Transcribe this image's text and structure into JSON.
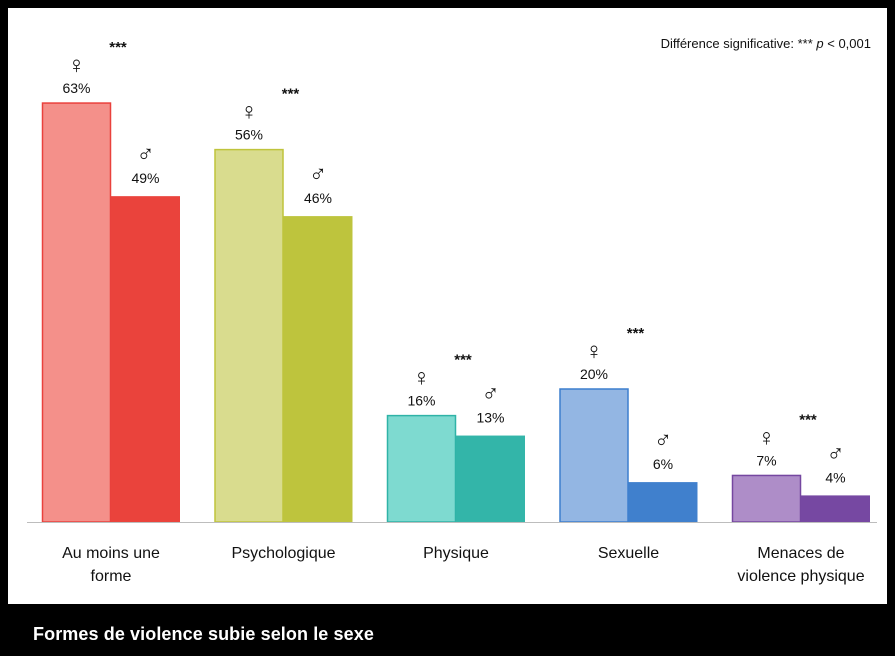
{
  "footer": {
    "title": "Formes de violence subie selon le sexe"
  },
  "chart_data": {
    "type": "bar",
    "annotation": {
      "prefix": "Différence significative: *** ",
      "p": "p",
      "suffix": " < 0,001"
    },
    "symbols": {
      "female": "♀",
      "male": "♂"
    },
    "significance_marker": "***",
    "value_format": "%",
    "ylim": [
      0,
      70
    ],
    "grid": false,
    "categories": [
      {
        "label_lines": [
          "Au moins une",
          "forme"
        ],
        "female": 63,
        "male": 49,
        "significant": true,
        "female_color": "#F4908A",
        "female_stroke": "#E9413C",
        "male_color": "#EA433C"
      },
      {
        "label_lines": [
          "Psychologique"
        ],
        "female": 56,
        "male": 46,
        "significant": true,
        "female_color": "#D9DC8E",
        "female_stroke": "#BFC43C",
        "male_color": "#BEC43D"
      },
      {
        "label_lines": [
          "Physique"
        ],
        "female": 16,
        "male": 13,
        "significant": true,
        "female_color": "#7EDAD0",
        "female_stroke": "#2FB3A7",
        "male_color": "#33B5A9"
      },
      {
        "label_lines": [
          "Sexuelle"
        ],
        "female": 20,
        "male": 6,
        "significant": true,
        "female_color": "#93B6E3",
        "female_stroke": "#3C7ECE",
        "male_color": "#4080CD"
      },
      {
        "label_lines": [
          "Menaces de",
          "violence physique"
        ],
        "female": 7,
        "male": 4,
        "significant": true,
        "female_color": "#AE8DC8",
        "female_stroke": "#7547A0",
        "male_color": "#7648A2"
      }
    ]
  }
}
